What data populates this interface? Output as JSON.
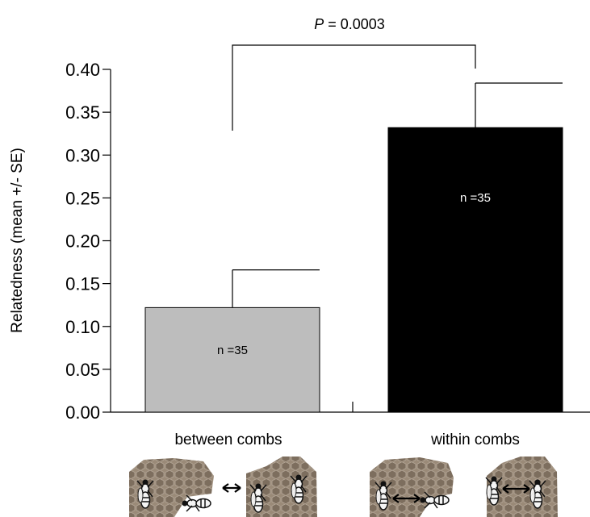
{
  "chart_data": {
    "type": "bar",
    "categories": [
      "between combs",
      "within combs"
    ],
    "values": [
      0.122,
      0.332
    ],
    "errors": [
      0.044,
      0.052
    ],
    "bar_colors": [
      "#bdbdbd",
      "#000000"
    ],
    "n_labels": [
      "n =35",
      "n =35"
    ],
    "n_label_colors": [
      "#000000",
      "#ffffff"
    ],
    "ylabel": "Relatedness (mean +/- SE)",
    "ylim": [
      0,
      0.4
    ],
    "yticks": [
      "0.00",
      "0.05",
      "0.10",
      "0.15",
      "0.20",
      "0.25",
      "0.30",
      "0.35",
      "0.40"
    ],
    "grid": false,
    "significance": {
      "p_symbol": "P",
      "p_rest": " = 0.0003"
    },
    "illustrations": [
      {
        "category": "between combs",
        "icon": "two-separate-combs-wasps-icon"
      },
      {
        "category": "within combs",
        "icon": "wasps-within-combs-icon"
      }
    ]
  }
}
